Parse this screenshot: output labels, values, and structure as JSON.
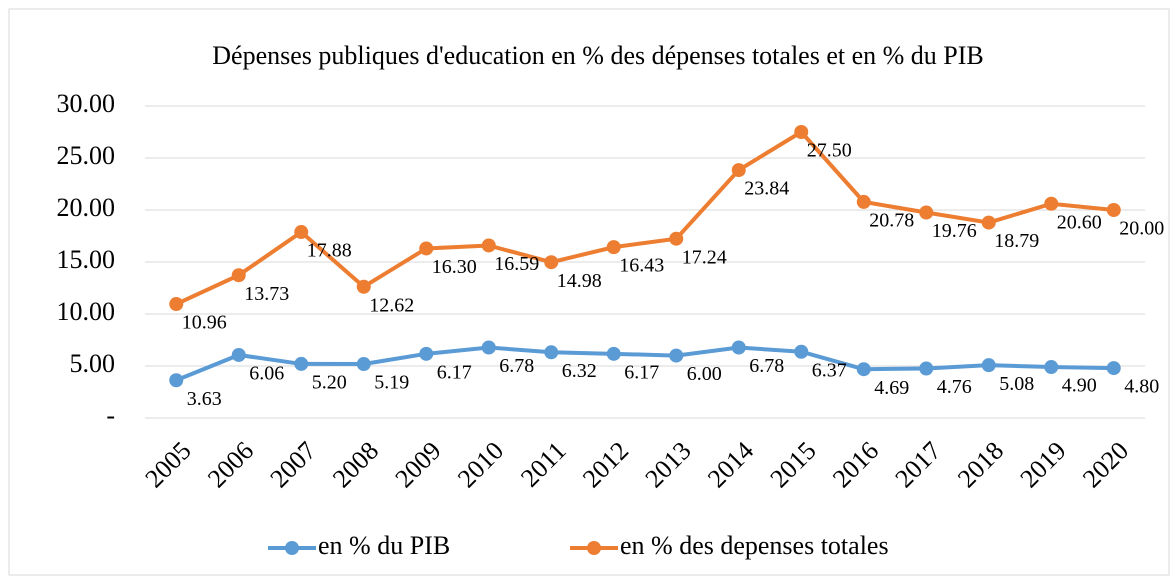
{
  "chart_data": {
    "type": "line",
    "title": "Dépenses publiques d'education en % des dépenses totales et en % du PIB",
    "categories": [
      "2005",
      "2006",
      "2007",
      "2008",
      "2009",
      "2010",
      "2011",
      "2012",
      "2013",
      "2014",
      "2015",
      "2016",
      "2017",
      "2018",
      "2019",
      "2020"
    ],
    "series": [
      {
        "name": "en % du PIB",
        "color": "#5b9bd5",
        "values": [
          3.63,
          6.06,
          5.2,
          5.19,
          6.17,
          6.78,
          6.32,
          6.17,
          6.0,
          6.78,
          6.37,
          4.69,
          4.76,
          5.08,
          4.9,
          4.8
        ],
        "value_labels": [
          "3.63",
          "6.06",
          "5.20",
          "5.19",
          "6.17",
          "6.78",
          "6.32",
          "6.17",
          "6.00",
          "6.78",
          "6.37",
          "4.69",
          "4.76",
          "5.08",
          "4.90",
          "4.80"
        ]
      },
      {
        "name": "en % des depenses totales",
        "color": "#ed7d31",
        "values": [
          10.96,
          13.73,
          17.88,
          12.62,
          16.3,
          16.59,
          14.98,
          16.43,
          17.24,
          23.84,
          27.5,
          20.78,
          19.76,
          18.79,
          20.6,
          20.0
        ],
        "value_labels": [
          "10.96",
          "13.73",
          "17.88",
          "12.62",
          "16.30",
          "16.59",
          "14.98",
          "16.43",
          "17.24",
          "23.84",
          "27.50",
          "20.78",
          "19.76",
          "18.79",
          "20.60",
          "20.00"
        ]
      }
    ],
    "ylim": [
      0,
      30
    ],
    "yticks": [
      {
        "value": 0,
        "label": "-"
      },
      {
        "value": 5,
        "label": "5.00"
      },
      {
        "value": 10,
        "label": "10.00"
      },
      {
        "value": 15,
        "label": "15.00"
      },
      {
        "value": 20,
        "label": "20.00"
      },
      {
        "value": 25,
        "label": "25.00"
      },
      {
        "value": 30,
        "label": "30.00"
      }
    ],
    "grid": true,
    "legend": "bottom"
  }
}
